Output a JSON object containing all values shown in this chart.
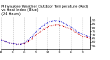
{
  "title": "Milwaukee Weather Outdoor Temperature (Red) vs Heat Index (Blue) (24 Hours)",
  "title_line1": "Milwaukee Weather Outdoor Temperature (Red)",
  "title_line2": "vs Heat Index (Blue)",
  "title_line3": "(24 Hours)",
  "red_x": [
    0,
    1,
    2,
    3,
    4,
    5,
    6,
    7,
    8,
    9,
    10,
    11,
    12,
    13,
    14,
    15,
    16,
    17,
    18,
    19,
    20,
    21,
    22,
    23
  ],
  "red_y": [
    63,
    61,
    59,
    58,
    57,
    57,
    58,
    61,
    65,
    70,
    74,
    78,
    81,
    83,
    84,
    84,
    82,
    80,
    78,
    74,
    71,
    68,
    67,
    65
  ],
  "blue_x": [
    0,
    1,
    2,
    3,
    4,
    5,
    6,
    7,
    8,
    9,
    10,
    11,
    12,
    13,
    14,
    15,
    16,
    17,
    18,
    19,
    20,
    21,
    22,
    23
  ],
  "blue_y": [
    63,
    61,
    59,
    58,
    57,
    57,
    59,
    63,
    68,
    74,
    79,
    84,
    87,
    89,
    90,
    89,
    87,
    84,
    81,
    77,
    73,
    71,
    69,
    67
  ],
  "ylim": [
    50,
    95
  ],
  "ytick_vals": [
    55,
    60,
    65,
    70,
    75,
    80,
    85,
    90
  ],
  "ytick_labels": [
    "55",
    "60",
    "65",
    "70",
    "75",
    "80",
    "85",
    "90"
  ],
  "xlim": [
    0,
    23
  ],
  "xtick_vals": [
    0,
    3,
    6,
    9,
    12,
    15,
    18,
    21
  ],
  "xtick_labels": [
    "12",
    "3",
    "6",
    "9",
    "12",
    "3",
    "6",
    "9"
  ],
  "bg_color": "#ffffff",
  "plot_bg_color": "#ffffff",
  "grid_color": "#bbbbbb",
  "red_color": "#cc0000",
  "blue_color": "#0000cc",
  "title_fontsize": 3.8,
  "tick_fontsize": 3.2,
  "line_width": 0.7,
  "marker_size": 1.0,
  "spine_color": "#000000"
}
